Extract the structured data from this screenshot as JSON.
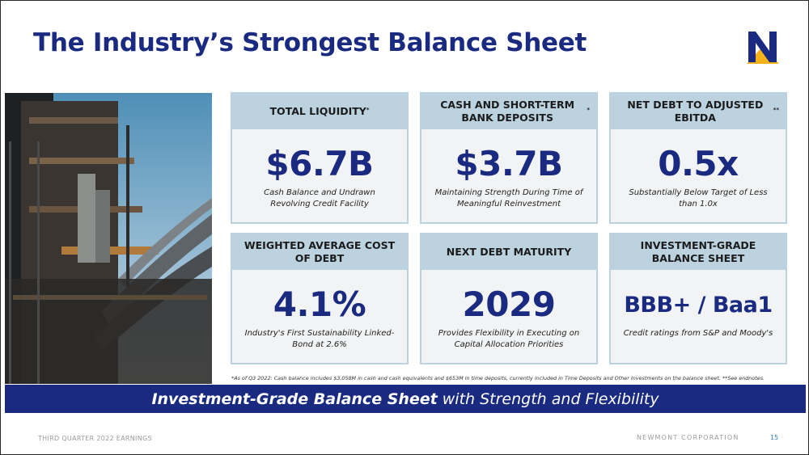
{
  "title": "The Industry’s Strongest Balance Sheet",
  "cards": [
    {
      "label": "TOTAL LIQUIDITY",
      "mark": "*",
      "value": "$6.7B",
      "desc": "Cash Balance and Undrawn Revolving Credit Facility"
    },
    {
      "label": "CASH AND SHORT-TERM BANK DEPOSITS",
      "mark": "*",
      "value": "$3.7B",
      "desc": "Maintaining Strength During Time of Meaningful Reinvestment"
    },
    {
      "label": "NET DEBT TO ADJUSTED EBITDA",
      "mark": "**",
      "value": "0.5x",
      "desc": "Substantially Below Target of Less than 1.0x"
    },
    {
      "label": "WEIGHTED AVERAGE COST OF DEBT",
      "mark": "",
      "value": "4.1%",
      "desc": "Industry's First Sustainability Linked-Bond at 2.6%"
    },
    {
      "label": "NEXT DEBT MATURITY",
      "mark": "",
      "value": "2029",
      "desc": "Provides Flexibility in Executing on Capital Allocation Priorities"
    },
    {
      "label": "INVESTMENT-GRADE BALANCE SHEET",
      "mark": "",
      "value": "BBB+ / Baa1",
      "desc": "Credit ratings from S&P and Moody's"
    }
  ],
  "footnote": "*As of Q3 2022: Cash balance includes $3,058M in cash and cash equivalents and $653M in time deposits, currently included in Time Deposits and Other Investments on the balance sheet. **See endnotes.",
  "banner": {
    "bold": "Investment-Grade Balance Sheet",
    "rest": "with Strength and Flexibility"
  },
  "footer": {
    "left": "THIRD QUARTER 2022 EARNINGS",
    "right": "NEWMONT CORPORATION",
    "page": "15"
  },
  "colors": {
    "brand_navy": "#1a2a80",
    "card_header": "#bcd3df",
    "card_body": "#f2f3f4",
    "logo_gold": "#f5b21a"
  }
}
